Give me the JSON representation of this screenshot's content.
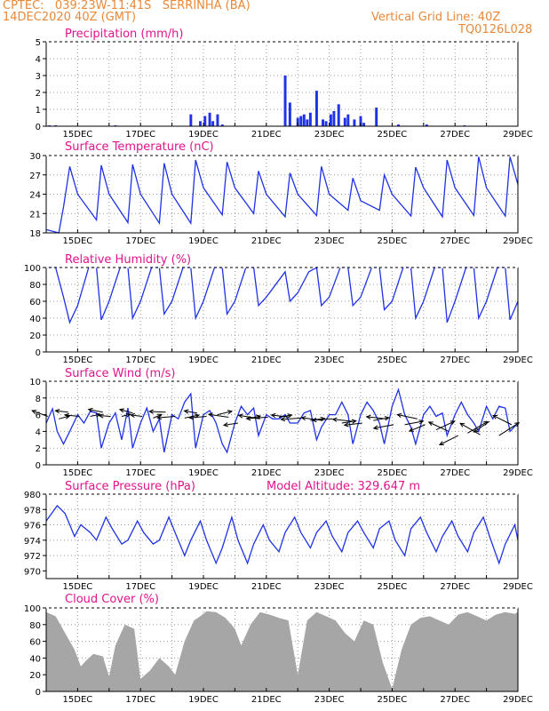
{
  "header": {
    "line1": "CPTEC:   039:23W-11:41S   SERRINHA (BA)",
    "line2": "14DEC2020 40Z (GMT)",
    "grid_note": "Vertical Grid Line: 40Z",
    "code": "TQ0126L028"
  },
  "colors": {
    "header": "#e8893a",
    "title": "#e0148c",
    "line": "#1f32e6",
    "cloud": "#a6a6a6",
    "grid": "#999999"
  },
  "x_axis": {
    "start_day": 14,
    "end_day": 29,
    "tick_labels": [
      "15DEC",
      "17DEC",
      "19DEC",
      "21DEC",
      "23DEC",
      "25DEC",
      "27DEC",
      "29DEC"
    ],
    "tick_days": [
      15,
      17,
      19,
      21,
      23,
      25,
      27,
      29
    ]
  },
  "chart_data": [
    {
      "id": "precip",
      "type": "bar",
      "title": "Precipitation (mm/h)",
      "ylim": [
        0,
        5
      ],
      "yticks": [
        0,
        1,
        2,
        3,
        4,
        5
      ],
      "x": [
        14.1,
        14.3,
        16.2,
        18.6,
        18.9,
        19.05,
        19.2,
        19.3,
        19.45,
        19.6,
        21.6,
        21.75,
        22.0,
        22.1,
        22.2,
        22.3,
        22.4,
        22.6,
        22.8,
        22.9,
        23.05,
        23.15,
        23.3,
        23.5,
        23.6,
        23.8,
        24.0,
        24.1,
        24.5,
        25.2,
        26.1,
        27.3
      ],
      "values": [
        0.05,
        0.05,
        0.05,
        0.7,
        0.3,
        0.6,
        0.8,
        0.3,
        0.7,
        0.1,
        3.0,
        1.4,
        0.5,
        0.6,
        0.7,
        0.4,
        0.8,
        2.1,
        0.4,
        0.3,
        0.7,
        0.9,
        1.3,
        0.5,
        0.7,
        0.4,
        0.6,
        0.2,
        1.1,
        0.1,
        0.1,
        0.05
      ]
    },
    {
      "id": "temp",
      "type": "line",
      "title": "Surface Temperature (nC)",
      "ylim": [
        18,
        30
      ],
      "yticks": [
        18,
        21,
        24,
        27,
        30
      ],
      "x": [
        14.0,
        14.4,
        14.55,
        14.75,
        15.0,
        15.6,
        15.75,
        16.0,
        16.6,
        16.75,
        17.0,
        17.6,
        17.75,
        18.0,
        18.6,
        18.75,
        19.0,
        19.6,
        19.75,
        20.0,
        20.6,
        20.75,
        21.0,
        21.6,
        21.75,
        22.0,
        22.6,
        22.75,
        23.0,
        23.6,
        23.75,
        24.0,
        24.6,
        24.75,
        25.0,
        25.6,
        25.75,
        26.0,
        26.6,
        26.75,
        27.0,
        27.6,
        27.75,
        28.0,
        28.6,
        28.75,
        29.0
      ],
      "values": [
        18.5,
        18.0,
        22,
        28.3,
        24,
        20,
        28.5,
        24,
        19.6,
        28.6,
        24,
        19.5,
        28.8,
        24,
        19.5,
        29.3,
        25,
        20.8,
        29.0,
        25,
        21.0,
        27.6,
        24,
        20.5,
        27.3,
        24,
        20.7,
        28.3,
        24,
        21.5,
        26.5,
        23,
        21.5,
        27.0,
        24,
        20.6,
        28.2,
        25,
        20.5,
        29.3,
        25,
        20.7,
        29.8,
        25,
        20.6,
        29.8,
        25.5
      ]
    },
    {
      "id": "rh",
      "type": "line",
      "title": "Relative Humidity (%)",
      "ylim": [
        0,
        100
      ],
      "yticks": [
        0,
        20,
        40,
        60,
        80,
        100
      ],
      "x": [
        14.0,
        14.3,
        14.55,
        14.75,
        15.0,
        15.35,
        15.6,
        15.75,
        16.0,
        16.35,
        16.6,
        16.75,
        17.0,
        17.35,
        17.6,
        17.75,
        18.0,
        18.35,
        18.6,
        18.75,
        19.0,
        19.35,
        19.6,
        19.75,
        20.0,
        20.35,
        20.6,
        20.75,
        21.0,
        21.6,
        21.75,
        22.0,
        22.35,
        22.6,
        22.75,
        23.0,
        23.35,
        23.6,
        23.75,
        24.0,
        24.35,
        24.6,
        24.75,
        25.0,
        25.35,
        25.6,
        25.75,
        26.0,
        26.35,
        26.6,
        26.75,
        27.0,
        27.35,
        27.6,
        27.75,
        28.0,
        28.35,
        28.6,
        28.75,
        29.0
      ],
      "values": [
        100,
        100,
        65,
        35,
        55,
        100,
        100,
        38,
        60,
        100,
        100,
        40,
        60,
        100,
        100,
        45,
        60,
        100,
        100,
        40,
        60,
        100,
        100,
        45,
        60,
        100,
        100,
        55,
        65,
        95,
        60,
        70,
        95,
        100,
        55,
        65,
        100,
        100,
        55,
        65,
        100,
        100,
        50,
        60,
        100,
        100,
        40,
        60,
        100,
        100,
        35,
        60,
        100,
        100,
        40,
        60,
        100,
        100,
        38,
        60
      ]
    },
    {
      "id": "wind",
      "type": "line",
      "title": "Surface Wind (m/s)",
      "ylim": [
        0,
        10
      ],
      "yticks": [
        0,
        2,
        4,
        6,
        8,
        10
      ],
      "x": [
        14.0,
        14.2,
        14.35,
        14.55,
        14.75,
        15.0,
        15.2,
        15.4,
        15.6,
        15.75,
        16.0,
        16.2,
        16.4,
        16.6,
        16.75,
        17.0,
        17.2,
        17.4,
        17.6,
        17.75,
        18.0,
        18.2,
        18.4,
        18.6,
        18.75,
        19.0,
        19.2,
        19.4,
        19.6,
        19.75,
        20.0,
        20.2,
        20.4,
        20.6,
        20.75,
        21.0,
        21.2,
        21.4,
        21.6,
        21.75,
        22.0,
        22.2,
        22.4,
        22.6,
        22.75,
        23.0,
        23.2,
        23.4,
        23.6,
        23.75,
        24.0,
        24.2,
        24.4,
        24.6,
        24.75,
        25.0,
        25.2,
        25.4,
        25.6,
        25.75,
        26.0,
        26.2,
        26.4,
        26.6,
        26.75,
        27.0,
        27.2,
        27.4,
        27.6,
        27.75,
        28.0,
        28.2,
        28.4,
        28.6,
        28.75,
        29.0
      ],
      "values": [
        5,
        6.7,
        4,
        2.5,
        4,
        6,
        5,
        6.4,
        6.2,
        2,
        5,
        6.2,
        3,
        6.8,
        2,
        5,
        6.8,
        4,
        5.5,
        1.5,
        6,
        5.5,
        7.5,
        8.5,
        2,
        6,
        6.5,
        5,
        2.5,
        1.5,
        5,
        7,
        6,
        6.8,
        3.5,
        6,
        5.5,
        5.5,
        6,
        5,
        5,
        6.2,
        6.5,
        3,
        4.5,
        6,
        6,
        7.5,
        6,
        2.5,
        6,
        7.5,
        6.5,
        5,
        2.5,
        7,
        9,
        6,
        4.5,
        2.5,
        6,
        7,
        5.8,
        6.2,
        3.5,
        6,
        7.5,
        6,
        5,
        4,
        7,
        5.5,
        7,
        6.8,
        4,
        5
      ]
    },
    {
      "id": "pressure",
      "type": "line",
      "title": "Surface Pressure (hPa)",
      "annotation": "Model Altitude: 329.647  m",
      "ylim": [
        969,
        980
      ],
      "yticks": [
        970,
        972,
        974,
        976,
        978,
        980
      ],
      "x": [
        14.0,
        14.35,
        14.6,
        14.9,
        15.1,
        15.4,
        15.6,
        15.9,
        16.1,
        16.4,
        16.6,
        16.9,
        17.1,
        17.4,
        17.6,
        17.9,
        18.1,
        18.4,
        18.6,
        18.9,
        19.1,
        19.4,
        19.6,
        19.9,
        20.1,
        20.4,
        20.6,
        20.9,
        21.1,
        21.4,
        21.6,
        21.9,
        22.1,
        22.4,
        22.6,
        22.9,
        23.1,
        23.4,
        23.6,
        23.9,
        24.1,
        24.4,
        24.6,
        24.9,
        25.1,
        25.4,
        25.6,
        25.9,
        26.1,
        26.4,
        26.6,
        26.9,
        27.1,
        27.4,
        27.6,
        27.9,
        28.1,
        28.4,
        28.6,
        28.9,
        29.0
      ],
      "values": [
        976.5,
        978.5,
        977.5,
        974.5,
        976.0,
        975.0,
        974.0,
        977.0,
        975.5,
        973.5,
        974.0,
        976.5,
        975.0,
        973.5,
        974.0,
        977.0,
        975.0,
        972.0,
        974.0,
        976.5,
        974.0,
        971.0,
        973.0,
        977.0,
        974.0,
        971.0,
        973.5,
        976.0,
        974.0,
        972.5,
        975.0,
        977.0,
        975.0,
        973.0,
        975.0,
        976.5,
        974.5,
        972.5,
        975.0,
        976.5,
        975.0,
        973.0,
        975.5,
        976.5,
        974.0,
        972.0,
        975.5,
        977.0,
        975.0,
        972.5,
        974.5,
        976.5,
        974.5,
        972.5,
        975.0,
        977.0,
        974.5,
        971.0,
        973.5,
        976.0,
        974.0
      ]
    },
    {
      "id": "cloud",
      "type": "area",
      "title": "Cloud Cover (%)",
      "ylim": [
        0,
        100
      ],
      "yticks": [
        0,
        20,
        40,
        60,
        80,
        100
      ],
      "x": [
        14.0,
        14.3,
        14.6,
        14.9,
        15.1,
        15.3,
        15.5,
        15.8,
        16.0,
        16.2,
        16.5,
        16.8,
        17.0,
        17.3,
        17.6,
        17.9,
        18.1,
        18.4,
        18.7,
        18.9,
        19.1,
        19.4,
        19.7,
        20.0,
        20.2,
        20.5,
        20.8,
        21.1,
        21.4,
        21.7,
        22.0,
        22.3,
        22.6,
        22.9,
        23.2,
        23.5,
        23.8,
        24.1,
        24.4,
        24.7,
        25.0,
        25.3,
        25.6,
        25.9,
        26.2,
        26.5,
        26.8,
        27.1,
        27.4,
        27.7,
        28.0,
        28.3,
        28.6,
        28.9,
        29.0
      ],
      "values": [
        95,
        90,
        70,
        50,
        30,
        38,
        45,
        42,
        18,
        55,
        80,
        75,
        15,
        25,
        40,
        30,
        20,
        60,
        85,
        90,
        96,
        95,
        88,
        75,
        55,
        80,
        95,
        92,
        88,
        85,
        20,
        85,
        95,
        90,
        85,
        70,
        60,
        85,
        80,
        35,
        3,
        50,
        80,
        88,
        90,
        85,
        80,
        92,
        95,
        90,
        85,
        92,
        95,
        93,
        95
      ]
    }
  ],
  "wind_vectors": {
    "x": [
      14.05,
      14.4,
      14.7,
      15.05,
      15.4,
      15.8,
      16.05,
      16.4,
      16.75,
      17.05,
      17.4,
      17.8,
      18.1,
      18.4,
      18.8,
      19.1,
      19.45,
      19.8,
      20.1,
      20.4,
      20.8,
      21.05,
      21.4,
      21.75,
      22.1,
      22.4,
      22.8,
      23.1,
      23.4,
      23.75,
      24.05,
      24.4,
      24.8,
      25.05,
      25.4,
      25.8,
      26.05,
      26.4,
      26.8,
      27.1,
      27.4,
      27.8,
      28.1,
      28.4,
      28.8
    ],
    "y": [
      5.8,
      5.5,
      6.3,
      5.8,
      5.8,
      6.3,
      5.8,
      5.8,
      6.2,
      5.8,
      5.6,
      6.3,
      5.8,
      5.6,
      6.2,
      5.8,
      6,
      5.7,
      5,
      5.5,
      5.5,
      5.7,
      5.7,
      5.7,
      5.6,
      5.3,
      5.3,
      5.5,
      5,
      5.2,
      5,
      5.3,
      5.5,
      4.8,
      4.8,
      5.5,
      4.8,
      4.2,
      4,
      3.5,
      3.8,
      3.6,
      5.2,
      3.5,
      4.8
    ],
    "u": [
      -2.2,
      1.5,
      -1.8,
      -2,
      1.4,
      -2,
      -1.6,
      1.2,
      -1.8,
      -1.6,
      1.2,
      -2.3,
      -2.5,
      2,
      -1.8,
      -2.4,
      2,
      -2.8,
      -2,
      1.8,
      -3,
      -3,
      1.8,
      -2.6,
      -2.8,
      2,
      -3,
      -2.8,
      2,
      -2.8,
      -2.5,
      2.2,
      -2.7,
      -2.8,
      2.6,
      -2.8,
      -2.2,
      2.6,
      -2.8,
      -2.6,
      2.8,
      -2.8,
      -2.2,
      2.8,
      -2.6
    ],
    "v": [
      0.8,
      0.4,
      0.2,
      0.2,
      0.3,
      0.4,
      0.1,
      0.3,
      0.5,
      0.2,
      0.5,
      0.1,
      -0.2,
      0.4,
      0.3,
      -0.2,
      0.5,
      0.4,
      -0.3,
      0.4,
      0.5,
      -0.2,
      0.3,
      0.3,
      -0.2,
      0.3,
      0.4,
      -0.2,
      0.3,
      0.3,
      -0.3,
      0.4,
      0.3,
      -0.5,
      0.5,
      0.6,
      -0.9,
      1.2,
      1.3,
      -1.3,
      1.6,
      1.6,
      -1.5,
      1.8,
      1.3
    ]
  }
}
